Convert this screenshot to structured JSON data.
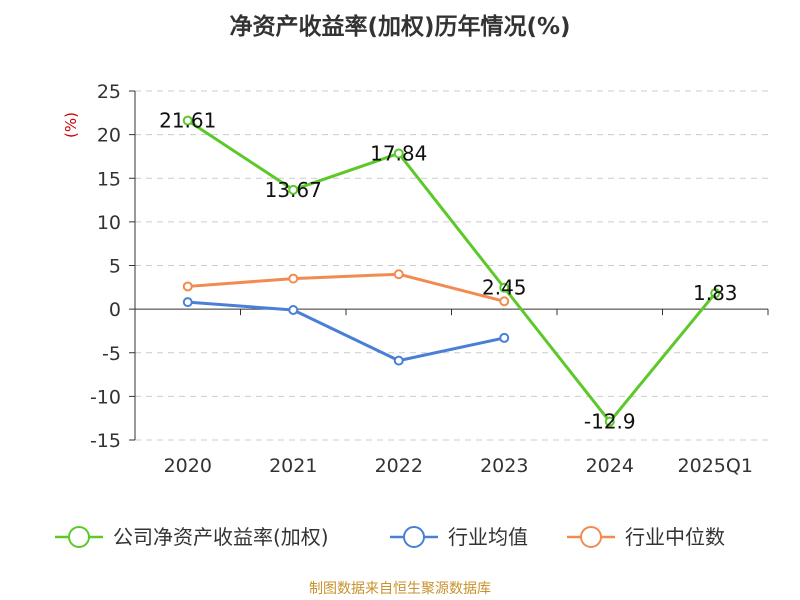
{
  "chart_data": {
    "type": "line",
    "title": "净资产收益率(加权)历年情况(%)",
    "unit_label": "(%)",
    "categories": [
      "2020",
      "2021",
      "2022",
      "2023",
      "2024",
      "2025Q1"
    ],
    "ylim": [
      -15,
      25
    ],
    "yticks": [
      25,
      20,
      15,
      10,
      5,
      0,
      -5,
      -10,
      -15
    ],
    "ytick_labels": [
      "25",
      "20",
      "15",
      "10",
      "5",
      "0",
      "-5",
      "-10",
      "-15"
    ],
    "grid": true,
    "legend_position": "bottom",
    "series": [
      {
        "name": "公司净资产收益率(加权)",
        "color": "#5cc82a",
        "values": [
          21.61,
          13.67,
          17.84,
          2.45,
          -12.9,
          1.83
        ],
        "data_labels": [
          "21.61",
          "13.67",
          "17.84",
          "2.45",
          "-12.9",
          "1.83"
        ]
      },
      {
        "name": "行业均值",
        "color": "#4a7fd6",
        "values": [
          0.8,
          -0.1,
          -5.9,
          -3.3,
          null,
          null
        ]
      },
      {
        "name": "行业中位数",
        "color": "#f28b52",
        "values": [
          2.6,
          3.5,
          4.0,
          0.9,
          null,
          null
        ]
      }
    ],
    "source": "制图数据来自恒生聚源数据库"
  }
}
